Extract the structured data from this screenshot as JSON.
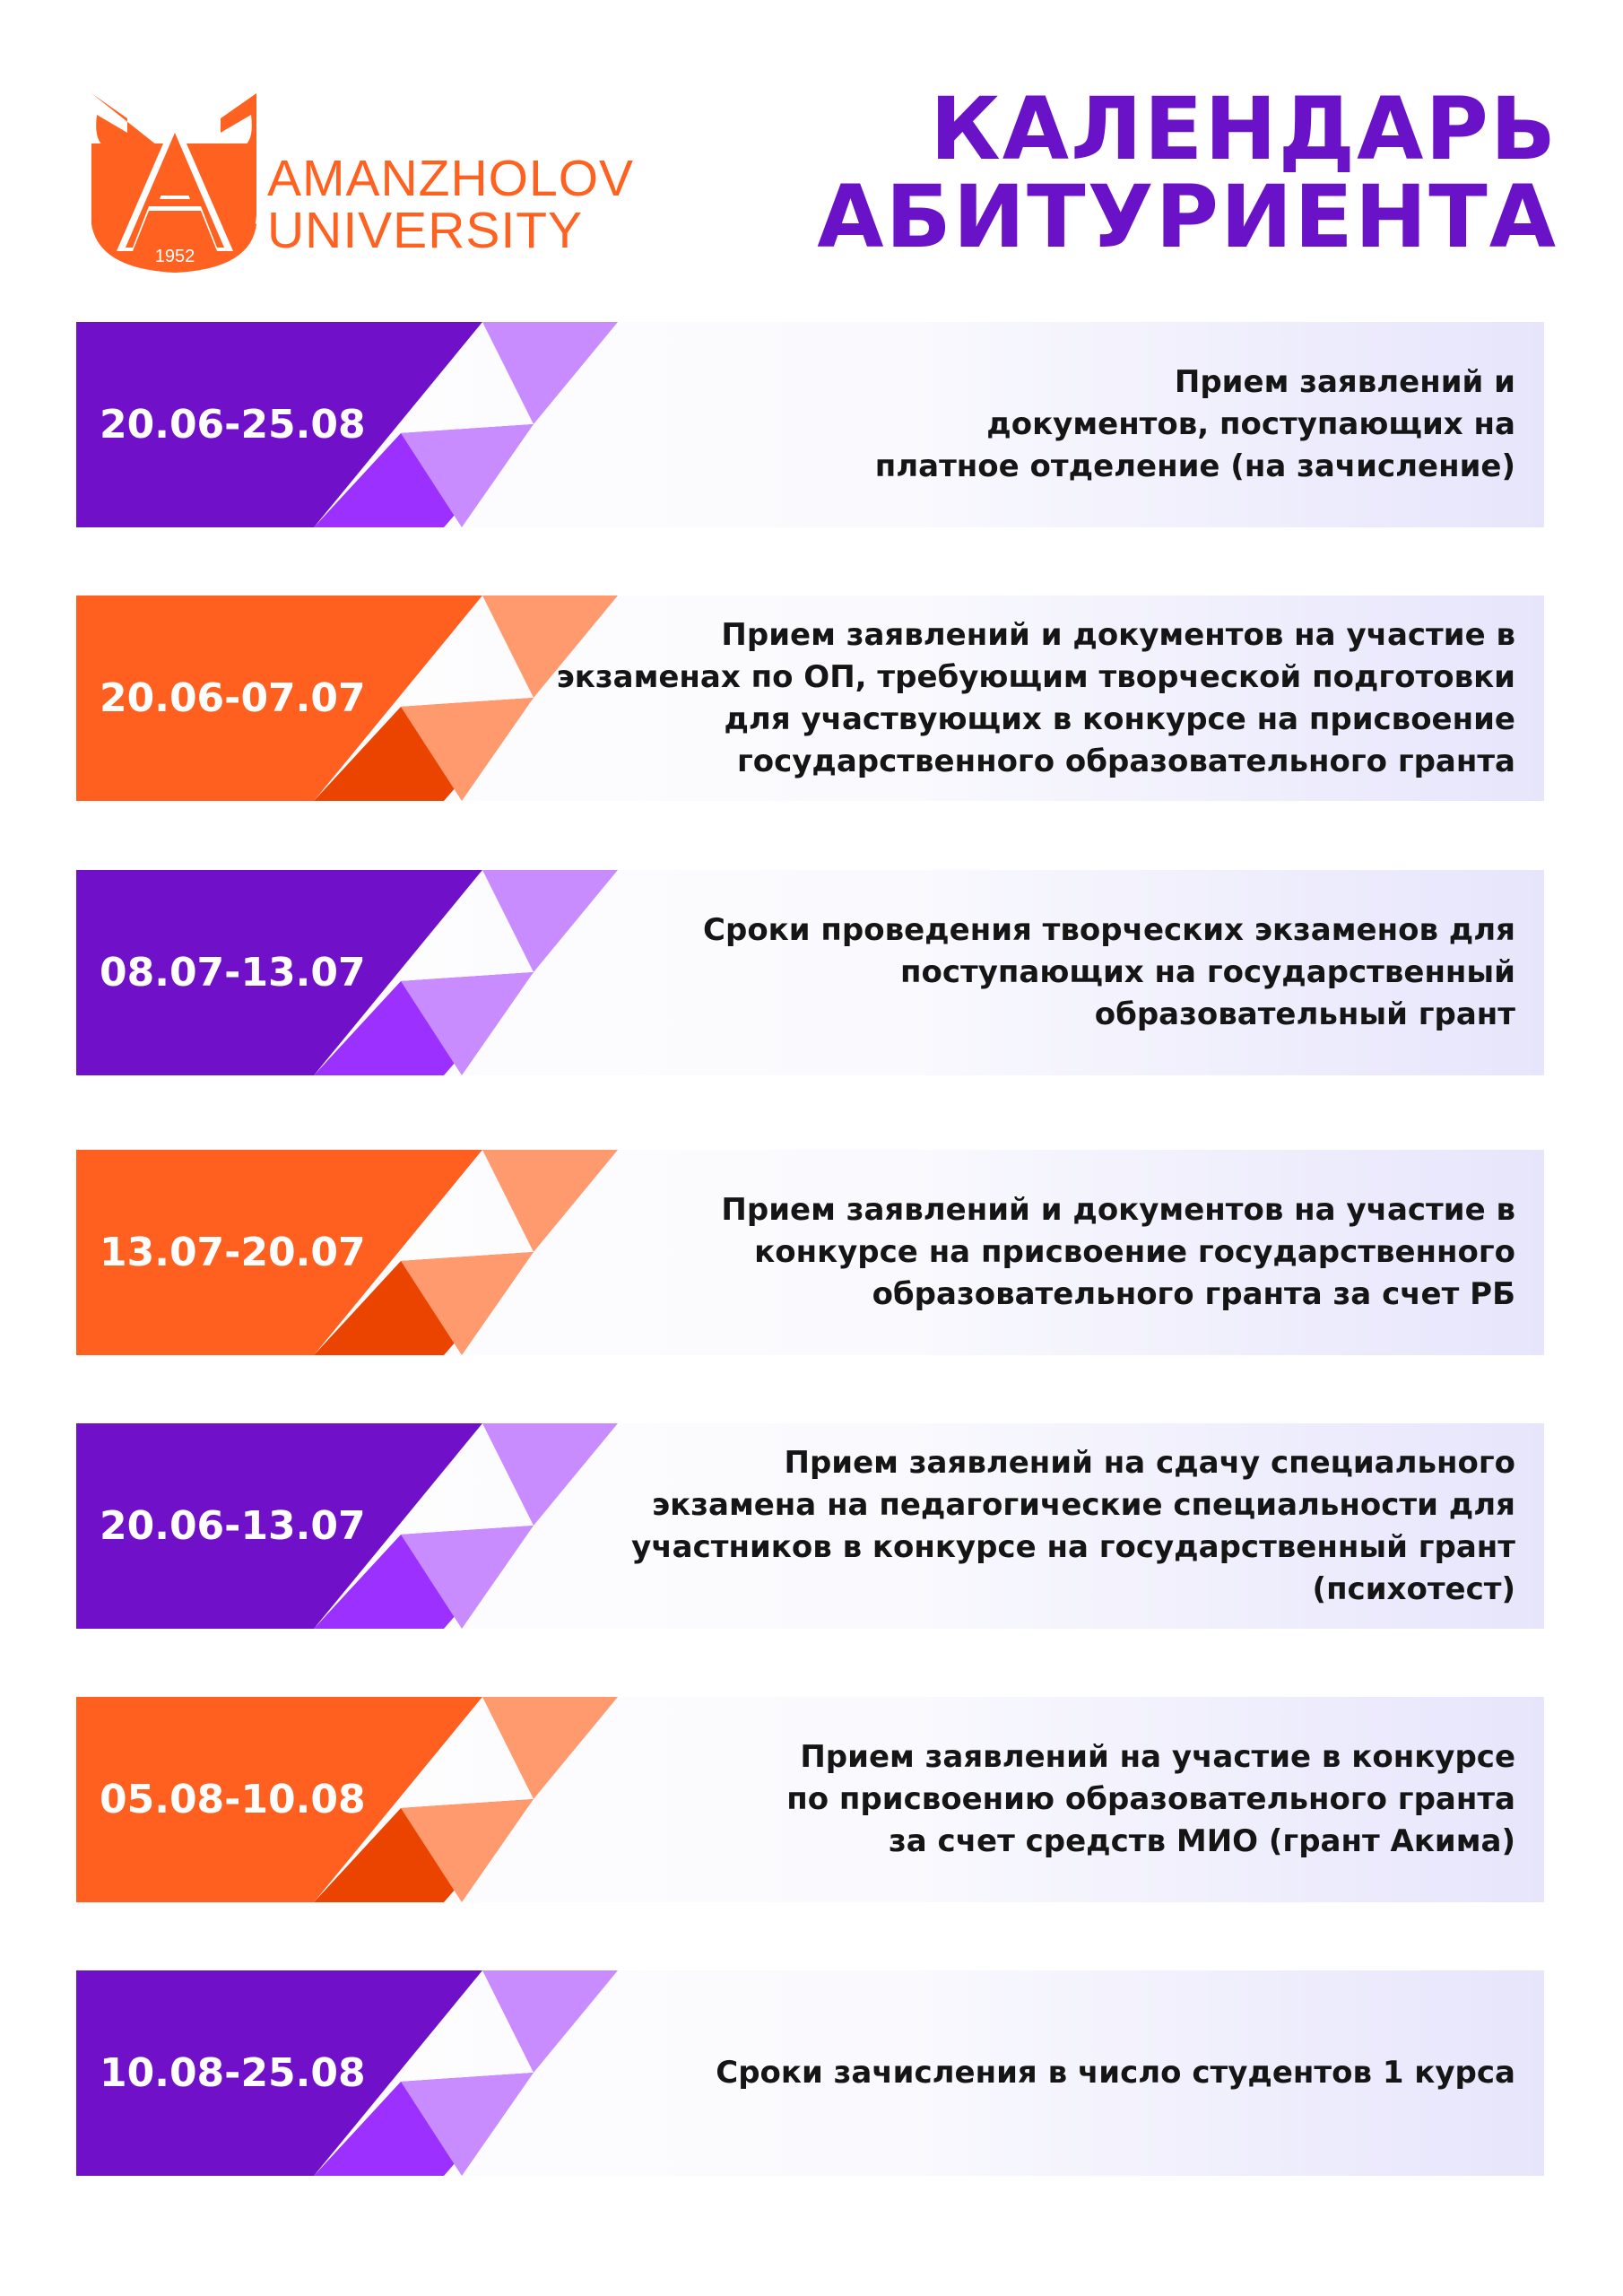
{
  "logo": {
    "line1": "AMANZHOLOV",
    "line2": "UNIVERSITY",
    "year": "1952",
    "color": "#ff6220"
  },
  "title": {
    "line1": "КАЛЕНДАРЬ",
    "line2": "АБИТУРИЕНТА",
    "color": "#6a12c8"
  },
  "colors": {
    "purple": {
      "dark": "#7010c8",
      "mid": "#9b30ff",
      "light": "#c98cff"
    },
    "orange": {
      "dark": "#ff5f1f",
      "mid": "#eb4400",
      "light": "#ff9a6e"
    }
  },
  "items": [
    {
      "date": "20.06-25.08",
      "theme": "purple",
      "text": "Прием заявлений и\nдокументов, поступающих на\nплатное отделение (на зачисление)"
    },
    {
      "date": "20.06-07.07",
      "theme": "orange",
      "text": "Прием заявлений и документов на участие в\nэкзаменах по ОП, требующим творческой подготовки\nдля участвующих в конкурсе на присвоение\nгосударственного образовательного гранта"
    },
    {
      "date": "08.07-13.07",
      "theme": "purple",
      "text": "Сроки проведения творческих экзаменов для\nпоступающих на государственный\nобразовательный грант"
    },
    {
      "date": "13.07-20.07",
      "theme": "orange",
      "text": "Прием заявлений и документов на участие в\nконкурсе на присвоение государственного\nобразовательного гранта за счет РБ"
    },
    {
      "date": "20.06-13.07",
      "theme": "purple",
      "text": "Прием заявлений на сдачу специального\nэкзамена на педагогические специальности для\nучастников в конкурсе на государственный грант\n(психотест)"
    },
    {
      "date": "05.08-10.08",
      "theme": "orange",
      "text": "Прием заявлений на участие в конкурсе\nпо присвоению образовательного гранта\nза счет средств МИО (грант Акима)"
    },
    {
      "date": "10.08-25.08",
      "theme": "purple",
      "text": "Сроки зачисления в число студентов 1 курса"
    }
  ]
}
